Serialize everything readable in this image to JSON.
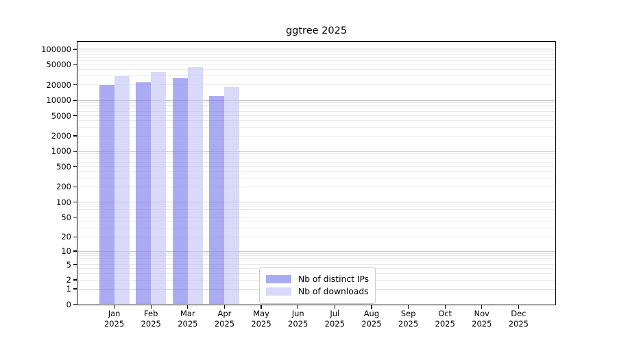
{
  "chart_data": {
    "type": "bar",
    "title": "ggtree 2025",
    "year": "2025",
    "categories": [
      "Jan",
      "Feb",
      "Mar",
      "Apr",
      "May",
      "Jun",
      "Jul",
      "Aug",
      "Sep",
      "Oct",
      "Nov",
      "Dec"
    ],
    "series": [
      {
        "name": "Nb of distinct IPs",
        "color": "#7878EB",
        "fill_alpha": 0.62,
        "values": [
          20000,
          22500,
          27000,
          12000,
          0,
          0,
          0,
          0,
          0,
          0,
          0,
          0
        ]
      },
      {
        "name": "Nb of downloads",
        "color": "#C2C2F7",
        "fill_alpha": 0.62,
        "values": [
          30000,
          36000,
          45000,
          18000,
          0,
          0,
          0,
          0,
          0,
          0,
          0,
          0
        ]
      }
    ],
    "yscale": "log10(value+1)",
    "ylim": [
      0,
      140000
    ],
    "yticks": [
      0,
      1,
      2,
      5,
      10,
      20,
      50,
      100,
      200,
      500,
      1000,
      2000,
      5000,
      10000,
      20000,
      50000,
      100000
    ],
    "grid": "horizontal major and minor gridlines, light gray, on",
    "legend_position": "inside axes, lower-center-left",
    "colors": {
      "major_grid": "#c9c9c9",
      "minor_grid": "#eaeaea",
      "axis": "#000000",
      "background": "#ffffff"
    }
  }
}
